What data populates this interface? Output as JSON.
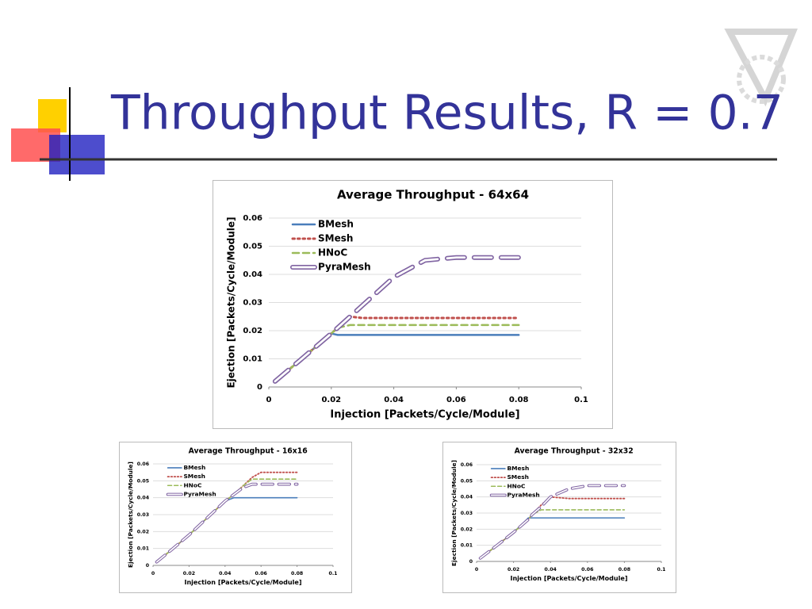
{
  "slide": {
    "title": "Throughput Results, R = 0.7"
  },
  "chart_data": [
    {
      "type": "line",
      "title": "Average Throughput - 64x64",
      "x_label": "Injection [Packets/Cycle/Module]",
      "y_label": "Ejection [Packets/Cycle/Module]",
      "x": [
        0.002,
        0.01,
        0.02,
        0.022,
        0.026,
        0.03,
        0.04,
        0.05,
        0.06,
        0.07,
        0.08
      ],
      "series": [
        {
          "name": "BMesh",
          "color": "#4a7ebb",
          "style": "solid",
          "values": [
            0.002,
            0.0095,
            0.019,
            0.0185,
            0.0185,
            0.0185,
            0.0185,
            0.0185,
            0.0185,
            0.0185,
            0.0185
          ]
        },
        {
          "name": "SMesh",
          "color": "#c0504d",
          "style": "dotted",
          "values": [
            0.002,
            0.0095,
            0.019,
            0.021,
            0.025,
            0.0245,
            0.0245,
            0.0245,
            0.0245,
            0.0245,
            0.0245
          ]
        },
        {
          "name": "HNoC",
          "color": "#9bbb59",
          "style": "dashed",
          "values": [
            0.002,
            0.0095,
            0.019,
            0.021,
            0.022,
            0.022,
            0.022,
            0.022,
            0.022,
            0.022,
            0.022
          ]
        },
        {
          "name": "PyraMesh",
          "color": "#8064a2",
          "style": "outlined",
          "values": [
            0.002,
            0.0095,
            0.019,
            0.021,
            0.025,
            0.029,
            0.039,
            0.045,
            0.046,
            0.046,
            0.046
          ]
        }
      ],
      "xlim": [
        0,
        0.1
      ],
      "xticks": [
        0,
        0.02,
        0.04,
        0.06,
        0.08,
        0.1
      ],
      "ylim": [
        0,
        0.06
      ],
      "yticks": [
        0,
        0.01,
        0.02,
        0.03,
        0.04,
        0.05,
        0.06
      ],
      "grid": true,
      "legend": "top-left"
    },
    {
      "type": "line",
      "title": "Average Throughput - 16x16",
      "x_label": "Injection [Packets/Cycle/Module]",
      "y_label": "Ejection [Packets/Cycle/Module]",
      "x": [
        0.002,
        0.01,
        0.02,
        0.03,
        0.04,
        0.045,
        0.05,
        0.055,
        0.06,
        0.07,
        0.08
      ],
      "series": [
        {
          "name": "BMesh",
          "color": "#4a7ebb",
          "style": "solid",
          "values": [
            0.002,
            0.009,
            0.018,
            0.028,
            0.038,
            0.04,
            0.04,
            0.04,
            0.04,
            0.04,
            0.04
          ]
        },
        {
          "name": "SMesh",
          "color": "#c0504d",
          "style": "dotted",
          "values": [
            0.002,
            0.009,
            0.018,
            0.028,
            0.038,
            0.042,
            0.047,
            0.052,
            0.055,
            0.055,
            0.055
          ]
        },
        {
          "name": "HNoC",
          "color": "#9bbb59",
          "style": "dashed",
          "values": [
            0.002,
            0.009,
            0.018,
            0.028,
            0.038,
            0.042,
            0.047,
            0.051,
            0.051,
            0.051,
            0.051
          ]
        },
        {
          "name": "PyraMesh",
          "color": "#8064a2",
          "style": "outlined",
          "values": [
            0.002,
            0.009,
            0.018,
            0.028,
            0.038,
            0.042,
            0.046,
            0.048,
            0.048,
            0.048,
            0.048
          ]
        }
      ],
      "xlim": [
        0,
        0.1
      ],
      "xticks": [
        0,
        0.02,
        0.04,
        0.06,
        0.08,
        0.1
      ],
      "ylim": [
        0,
        0.06
      ],
      "yticks": [
        0,
        0.01,
        0.02,
        0.03,
        0.04,
        0.05,
        0.06
      ],
      "grid": true,
      "legend": "top-left"
    },
    {
      "type": "line",
      "title": "Average Throughput - 32x32",
      "x_label": "Injection [Packets/Cycle/Module]",
      "y_label": "Ejection [Packets/Cycle/Module]",
      "x": [
        0.002,
        0.01,
        0.02,
        0.028,
        0.03,
        0.035,
        0.04,
        0.05,
        0.06,
        0.07,
        0.08
      ],
      "series": [
        {
          "name": "BMesh",
          "color": "#4a7ebb",
          "style": "solid",
          "values": [
            0.002,
            0.009,
            0.018,
            0.027,
            0.027,
            0.027,
            0.027,
            0.027,
            0.027,
            0.027,
            0.027
          ]
        },
        {
          "name": "SMesh",
          "color": "#c0504d",
          "style": "dotted",
          "values": [
            0.002,
            0.009,
            0.018,
            0.026,
            0.029,
            0.035,
            0.04,
            0.039,
            0.039,
            0.039,
            0.039
          ]
        },
        {
          "name": "HNoC",
          "color": "#9bbb59",
          "style": "dashed",
          "values": [
            0.002,
            0.009,
            0.018,
            0.026,
            0.029,
            0.032,
            0.032,
            0.032,
            0.032,
            0.032,
            0.032
          ]
        },
        {
          "name": "PyraMesh",
          "color": "#8064a2",
          "style": "outlined",
          "values": [
            0.002,
            0.009,
            0.018,
            0.026,
            0.029,
            0.034,
            0.04,
            0.045,
            0.047,
            0.047,
            0.047
          ]
        }
      ],
      "xlim": [
        0,
        0.1
      ],
      "xticks": [
        0,
        0.02,
        0.04,
        0.06,
        0.08,
        0.1
      ],
      "ylim": [
        0,
        0.06
      ],
      "yticks": [
        0,
        0.01,
        0.02,
        0.03,
        0.04,
        0.05,
        0.06
      ],
      "grid": true,
      "legend": "top-left"
    }
  ]
}
